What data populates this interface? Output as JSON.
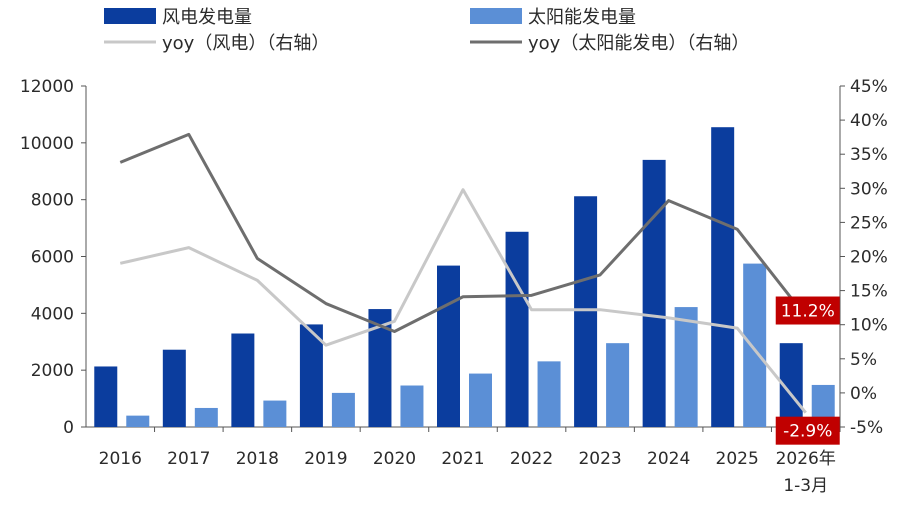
{
  "chart_data": {
    "type": "bar",
    "categories": [
      "2016",
      "2017",
      "2018",
      "2019",
      "2020",
      "2021",
      "2022",
      "2023",
      "2024",
      "2025",
      "2026年\n1-3月"
    ],
    "series": [
      {
        "name": "风电发电量",
        "kind": "bar",
        "axis": "left",
        "color": "#0b3d9e",
        "values": [
          2130,
          2720,
          3290,
          3610,
          4150,
          5680,
          6870,
          8120,
          9400,
          10550,
          2950
        ]
      },
      {
        "name": "太阳能发电量",
        "kind": "bar",
        "axis": "left",
        "color": "#5b8fd6",
        "values": [
          400,
          670,
          930,
          1200,
          1460,
          1880,
          2310,
          2950,
          4220,
          5750,
          1480
        ]
      },
      {
        "name": "yoy（风电）（右轴）",
        "kind": "line",
        "axis": "right",
        "color": "#c8c8c8",
        "values": [
          19.0,
          21.3,
          16.5,
          7.0,
          10.5,
          29.8,
          12.2,
          12.2,
          11.0,
          9.5,
          -2.9
        ]
      },
      {
        "name": "yoy（太阳能发电）（右轴）",
        "kind": "line",
        "axis": "right",
        "color": "#6e6e6e",
        "values": [
          33.8,
          37.9,
          19.7,
          13.1,
          9.0,
          14.1,
          14.3,
          17.3,
          28.2,
          24.0,
          11.2
        ]
      }
    ],
    "left_axis": {
      "min": 0,
      "max": 12000,
      "ticks": [
        "0",
        "2000",
        "4000",
        "6000",
        "8000",
        "10000",
        "12000"
      ]
    },
    "right_axis": {
      "min": -5,
      "max": 45,
      "ticks": [
        "-5%",
        "0%",
        "5%",
        "10%",
        "15%",
        "20%",
        "25%",
        "30%",
        "35%",
        "40%",
        "45%"
      ]
    },
    "callouts": [
      {
        "text": "11.2%",
        "series": 3,
        "color": "#c00000"
      },
      {
        "text": "-2.9%",
        "series": 2,
        "color": "#c00000"
      }
    ],
    "grid": false,
    "legend_position": "top"
  }
}
